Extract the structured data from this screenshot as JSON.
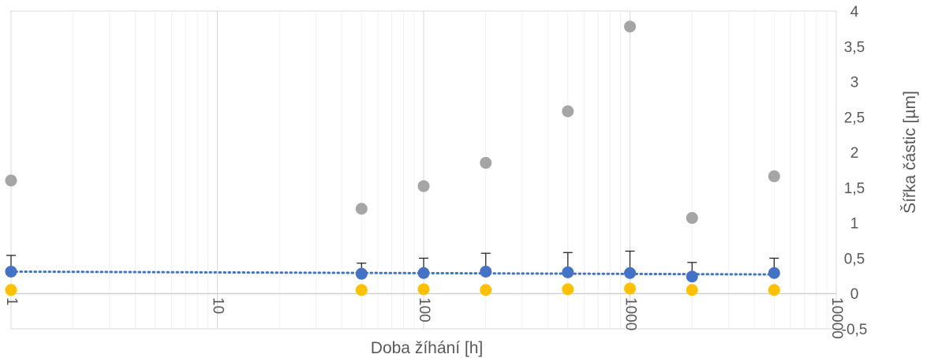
{
  "chart_data": {
    "type": "scatter",
    "title": "",
    "xlabel": "Doba žíhání [h]",
    "ylabel": "Šířka částic [µm]",
    "x_scale": "log",
    "xlim": [
      1,
      10000
    ],
    "ylim": [
      -0.5,
      4
    ],
    "x_ticks": [
      1,
      10,
      100,
      1000,
      10000
    ],
    "x_tick_labels": [
      "1",
      "10",
      "100",
      "1000",
      "10000"
    ],
    "y_ticks": [
      -0.5,
      0,
      0.5,
      1,
      1.5,
      2,
      2.5,
      3,
      3.5,
      4
    ],
    "y_tick_labels": [
      "-0,5",
      "0",
      "0,5",
      "1",
      "1,5",
      "2",
      "2,5",
      "3",
      "3,5",
      "4"
    ],
    "grid": true,
    "legend": "none",
    "series": [
      {
        "role": "maximum",
        "color": "#a5a5a5",
        "marker": "circle",
        "points": [
          [
            1,
            1.6
          ],
          [
            50,
            1.2
          ],
          [
            100,
            1.52
          ],
          [
            200,
            1.85
          ],
          [
            500,
            2.58
          ],
          [
            1000,
            3.78
          ],
          [
            2000,
            1.07
          ],
          [
            5000,
            1.66
          ]
        ]
      },
      {
        "role": "mean",
        "color": "#4472c4",
        "marker": "circle",
        "error_bar_plus": [
          0.23,
          0.15,
          0.21,
          0.26,
          0.28,
          0.31,
          0.2,
          0.21
        ],
        "points": [
          [
            1,
            0.31
          ],
          [
            50,
            0.28
          ],
          [
            100,
            0.29
          ],
          [
            200,
            0.31
          ],
          [
            500,
            0.3
          ],
          [
            1000,
            0.29
          ],
          [
            2000,
            0.24
          ],
          [
            5000,
            0.29
          ]
        ]
      },
      {
        "role": "minimum",
        "color": "#ffc000",
        "marker": "circle",
        "points": [
          [
            1,
            0.05
          ],
          [
            50,
            0.05
          ],
          [
            100,
            0.06
          ],
          [
            200,
            0.05
          ],
          [
            500,
            0.06
          ],
          [
            1000,
            0.07
          ],
          [
            2000,
            0.05
          ],
          [
            5000,
            0.05
          ]
        ]
      }
    ],
    "trendline": {
      "series_role": "mean",
      "style": "dotted",
      "color": "#4472c4",
      "x_range": [
        1,
        5000
      ],
      "y_range": [
        0.31,
        0.27
      ]
    }
  }
}
